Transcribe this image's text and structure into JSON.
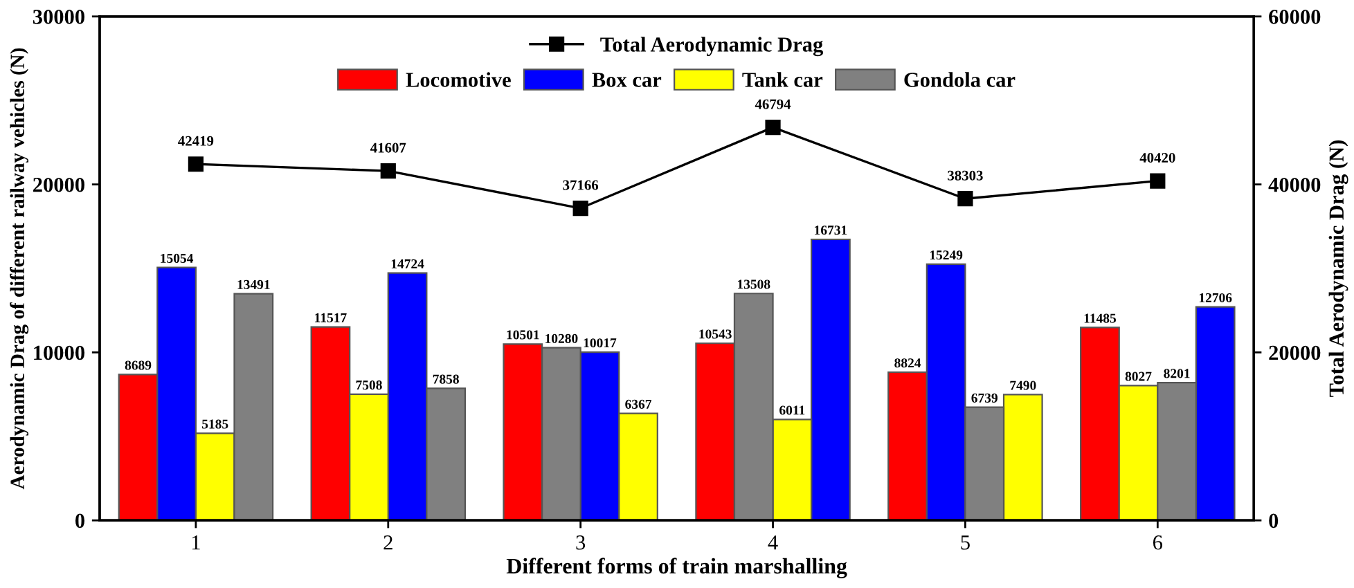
{
  "chart_data": {
    "type": "bar",
    "xlabel": "Different forms of train marshalling",
    "ylabel": "Aerodynamic Drag of different railway vehicles (N)",
    "y2label": "Total Aerodynamic Drag (N)",
    "xlim": [
      0.5,
      6.5
    ],
    "xticks": [
      1,
      2,
      3,
      4,
      5,
      6
    ],
    "ylim": [
      0,
      30000
    ],
    "yticks": [
      0,
      10000,
      20000,
      30000
    ],
    "y2lim": [
      0,
      60000
    ],
    "y2ticks": [
      0,
      20000,
      40000,
      60000
    ],
    "legend": "top",
    "data_labels": true,
    "series": [
      {
        "name": "Locomotive",
        "color": "#ff0000",
        "x": [
          0.7,
          1.7,
          2.7,
          3.7,
          4.7,
          5.7
        ],
        "values": [
          8689,
          11517,
          10501,
          10543,
          8824,
          11485
        ]
      },
      {
        "name": "Box car",
        "color": "#0000ff",
        "x": [
          0.9,
          2.1,
          3.1,
          4.3,
          4.9,
          6.3
        ],
        "values": [
          15054,
          14724,
          10017,
          16731,
          15249,
          12706
        ]
      },
      {
        "name": "Tank car",
        "color": "#ffff00",
        "x": [
          1.1,
          1.9,
          3.3,
          4.1,
          5.3,
          5.9
        ],
        "values": [
          5185,
          7508,
          6367,
          6011,
          7490,
          8027
        ]
      },
      {
        "name": "Gondola car",
        "color": "#808080",
        "x": [
          1.3,
          2.3,
          2.9,
          3.9,
          5.1,
          6.1
        ],
        "values": [
          13491,
          7858,
          10280,
          13508,
          6739,
          8201
        ]
      },
      {
        "name": "Total Aerodynamic Drag",
        "type": "line",
        "axis": "y2",
        "color": "#000000",
        "marker": "square",
        "line_style": "solid",
        "x": [
          1,
          2,
          3,
          4,
          5,
          6
        ],
        "values": [
          42419,
          41607,
          37166,
          46794,
          38303,
          40420
        ]
      }
    ]
  }
}
